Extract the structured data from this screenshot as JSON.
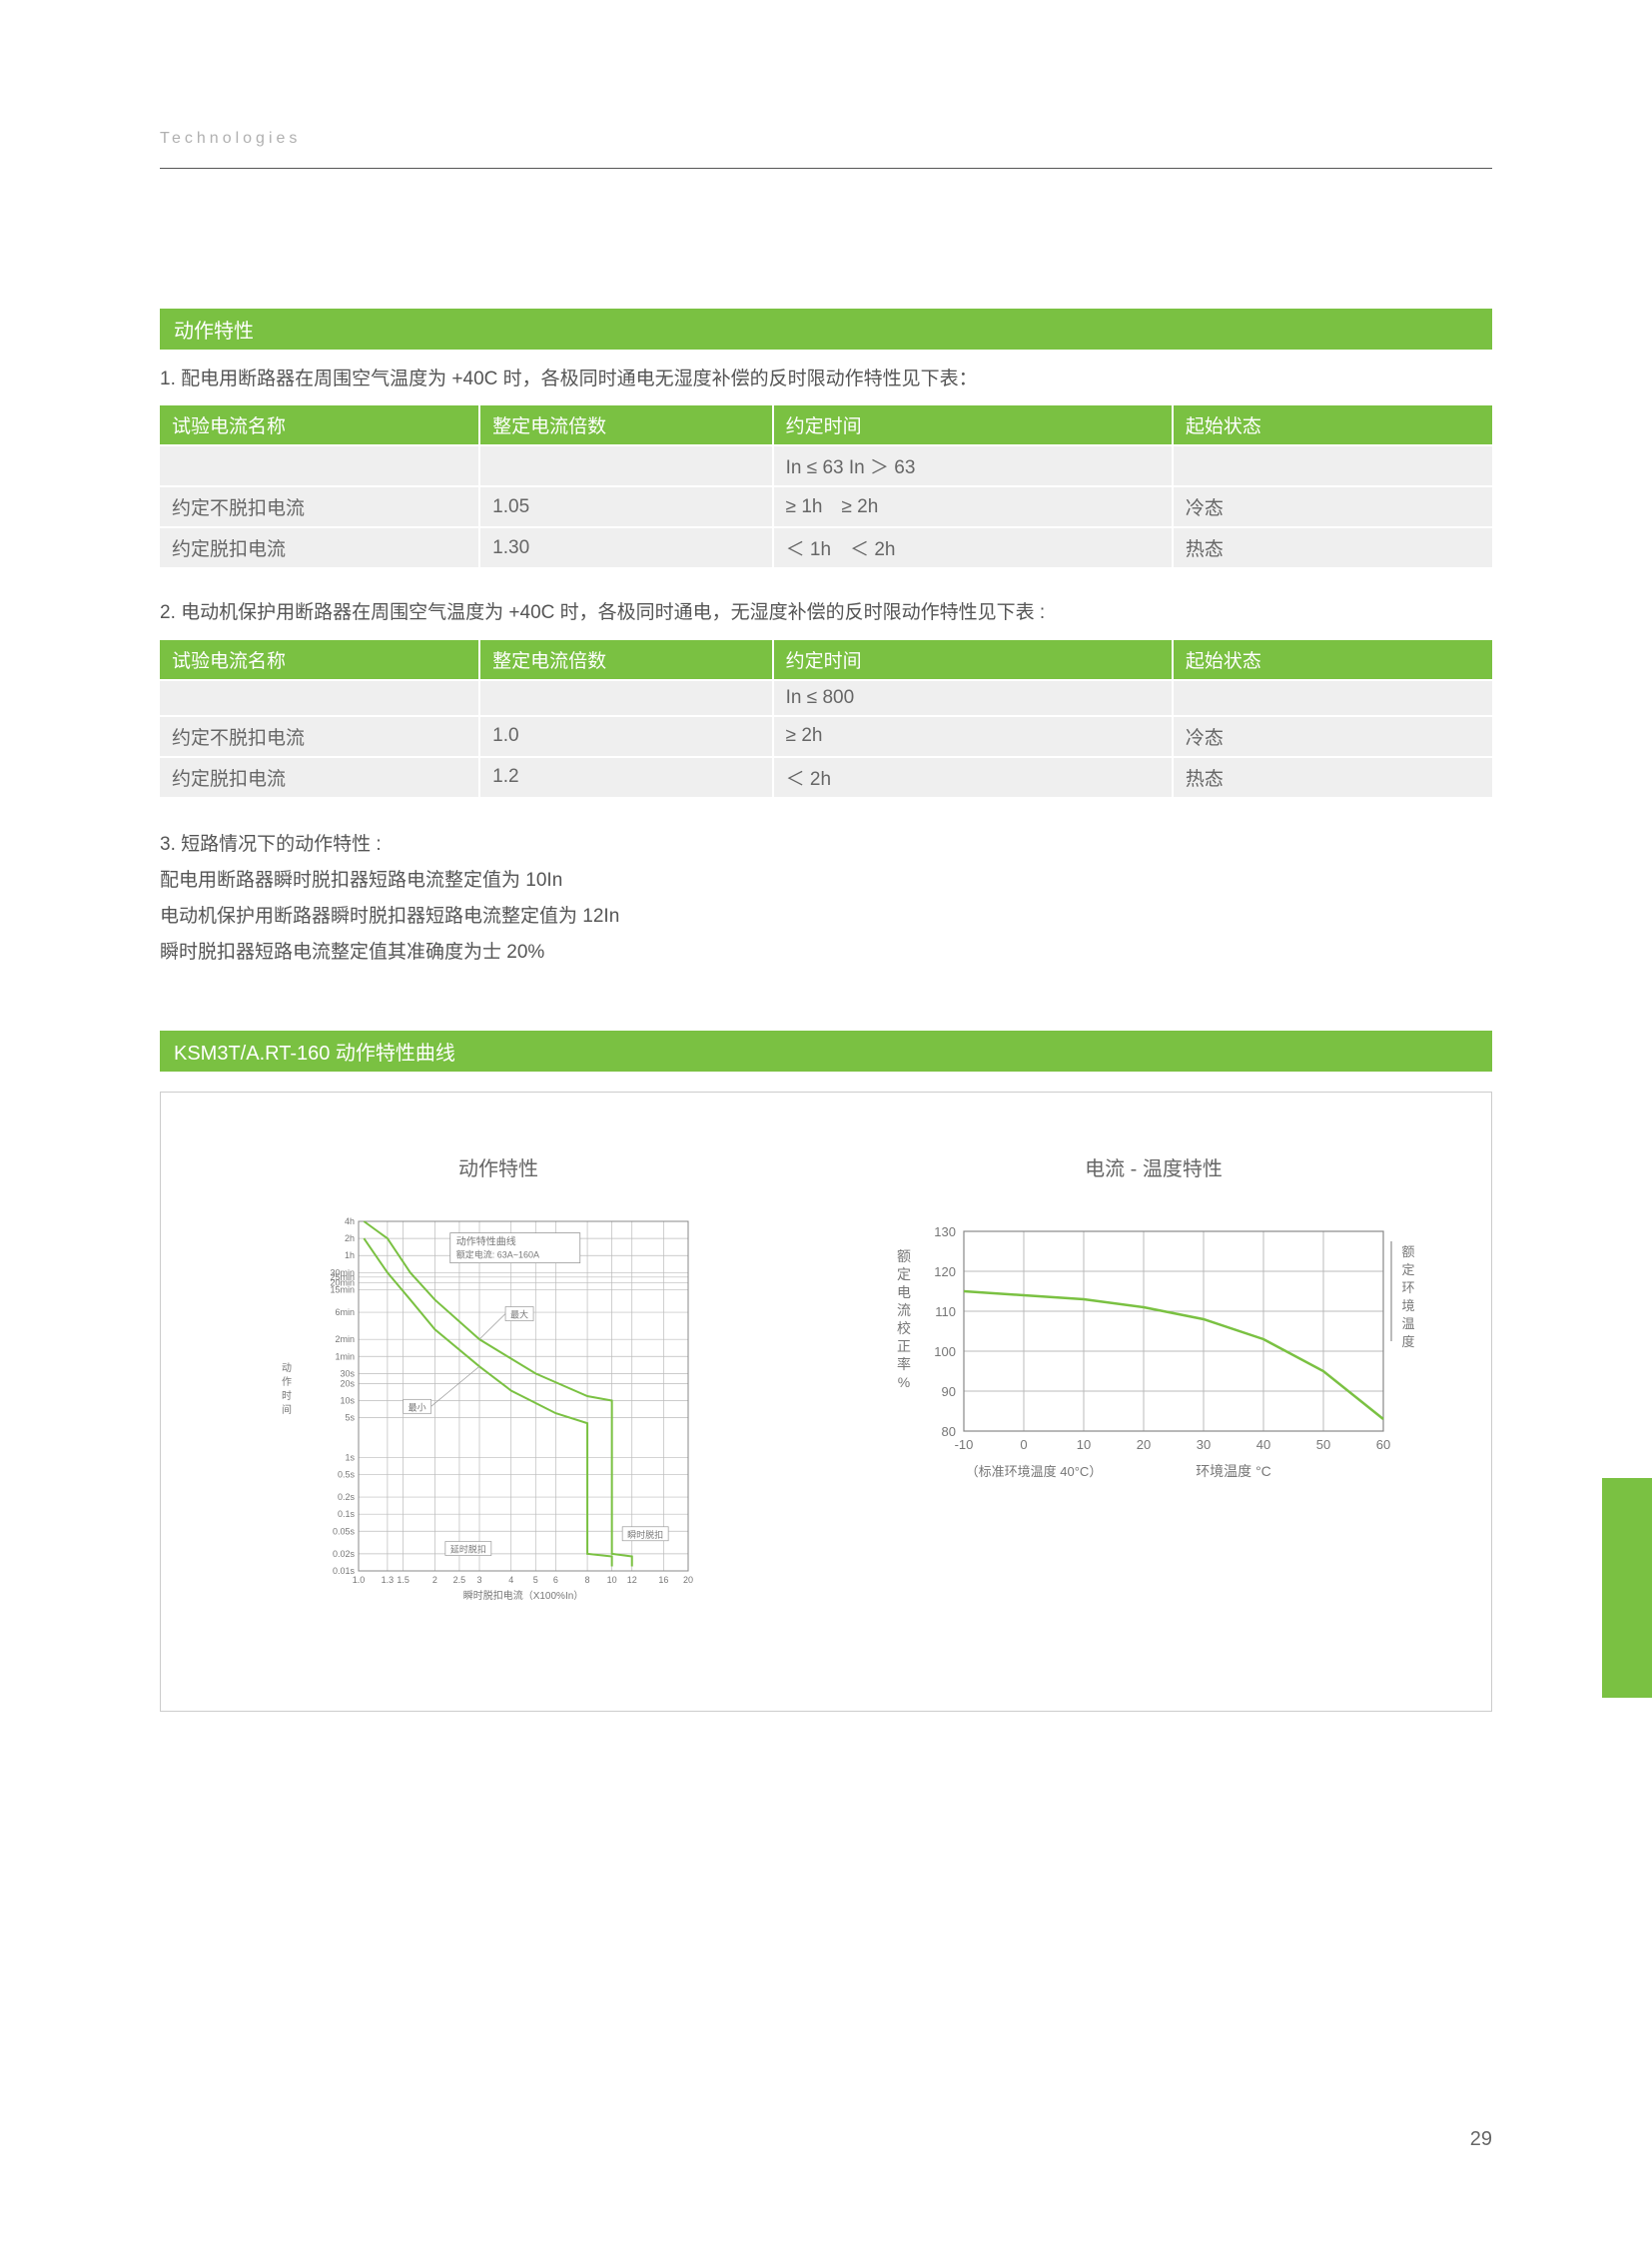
{
  "brand": "Technologies",
  "section1": {
    "title": "动作特性",
    "intro1": "1. 配电用断路器在周围空气温度为 +40C 时，各极同时通电无湿度补偿的反时限动作特性见下表：",
    "table1": {
      "headers": [
        "试验电流名称",
        "整定电流倍数",
        "约定时间",
        "起始状态"
      ],
      "rows": [
        [
          "",
          "",
          "In ≤ 63 In ＞ 63",
          ""
        ],
        [
          "约定不脱扣电流",
          "1.05",
          "≥ 1h ≥ 2h",
          "冷态"
        ],
        [
          "约定脱扣电流",
          "1.30",
          "＜ 1h ＜ 2h",
          "热态"
        ]
      ]
    },
    "intro2": "2. 电动机保护用断路器在周围空气温度为 +40C 时，各极同时通电，无湿度补偿的反时限动作特性见下表 :",
    "table2": {
      "headers": [
        "试验电流名称",
        "整定电流倍数",
        "约定时间",
        "起始状态"
      ],
      "rows": [
        [
          "",
          "",
          "In ≤ 800",
          ""
        ],
        [
          "约定不脱扣电流",
          "1.0",
          "≥ 2h",
          "冷态"
        ],
        [
          "约定脱扣电流",
          "1.2",
          "＜ 2h",
          "热态"
        ]
      ]
    },
    "para3_l1": "3. 短路情况下的动作特性 :",
    "para3_l2": "配电用断路器瞬时脱扣器短路电流整定值为 10In",
    "para3_l3": "电动机保护用断路器瞬时脱扣器短路电流整定值为 12In",
    "para3_l4": "瞬时脱扣器短路电流整定值其准确度为士 20%"
  },
  "section2": {
    "title": "KSM3T/A.RT-160 动作特性曲线",
    "left_chart": {
      "title": "动作特性",
      "legend_title": "动作特性曲线",
      "legend_sub": "额定电流: 63A~160A",
      "y_label": "动\n作\n时\n间",
      "y_ticks": [
        "4h",
        "2h",
        "1h",
        "30min",
        "25min",
        "20min",
        "15min",
        "6min",
        "2min",
        "1min",
        "30s",
        "20s",
        "10s",
        "5s",
        "1s",
        "0.5s",
        "0.2s",
        "0.1s",
        "0.05s",
        "0.02s",
        "0.01s"
      ],
      "x_label": "瞬时脱扣电流（X100%In）",
      "x_ticks": [
        "1.0",
        "1.3",
        "1.5",
        "2",
        "2.5",
        "3",
        "4",
        "5",
        "6",
        "8",
        "10",
        "12",
        "16",
        "20"
      ],
      "anno_max": "最大",
      "anno_min": "最小",
      "anno_delay": "延时脱扣",
      "anno_inst": "瞬时脱扣",
      "curve_color": "#7ac142",
      "grid_color": "#bbbbbb",
      "text_color": "#777777"
    },
    "right_chart": {
      "title": "电流 - 温度特性",
      "y_label": "额\n定\n电\n流\n校\n正\n率\n%",
      "right_label": "额\n定\n环\n境\n温\n度",
      "x_label": "环境温度  °C",
      "note": "（标准环境温度  40°C）",
      "y_ticks": [
        80,
        90,
        100,
        110,
        120,
        130
      ],
      "x_ticks": [
        -10,
        0,
        10,
        20,
        30,
        40,
        50,
        60
      ],
      "data_points": [
        {
          "x": -10,
          "y": 115
        },
        {
          "x": 0,
          "y": 114
        },
        {
          "x": 10,
          "y": 113
        },
        {
          "x": 20,
          "y": 111
        },
        {
          "x": 30,
          "y": 108
        },
        {
          "x": 40,
          "y": 103
        },
        {
          "x": 50,
          "y": 95
        },
        {
          "x": 60,
          "y": 83
        }
      ],
      "curve_color": "#7ac142",
      "grid_color": "#bbbbbb",
      "text_color": "#777777",
      "xlim": [
        -10,
        60
      ],
      "ylim": [
        80,
        130
      ]
    }
  },
  "page_number": "29"
}
